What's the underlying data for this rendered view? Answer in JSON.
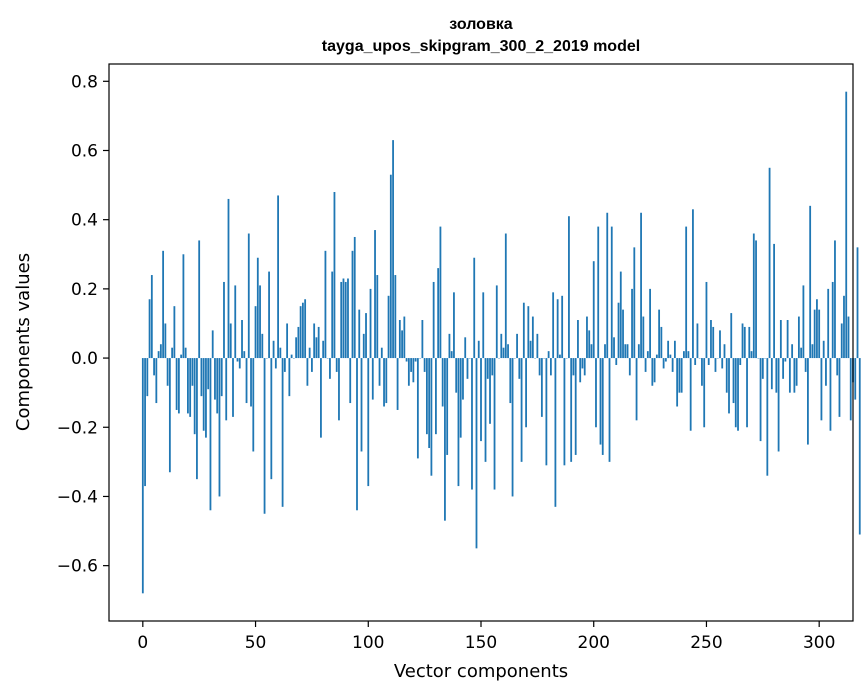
{
  "chart_data": {
    "type": "bar",
    "title": "золовка",
    "subtitle": "tayga_upos_skipgram_300_2_2019 model",
    "xlabel": "Vector components",
    "ylabel": "Components values",
    "xlim": [
      -15,
      315
    ],
    "ylim": [
      -0.76,
      0.85
    ],
    "xticks": [
      0,
      50,
      100,
      150,
      200,
      250,
      300
    ],
    "xtick_labels": [
      "0",
      "50",
      "100",
      "150",
      "200",
      "250",
      "300"
    ],
    "yticks": [
      -0.6,
      -0.4,
      -0.2,
      0.0,
      0.2,
      0.4,
      0.6,
      0.8
    ],
    "ytick_labels": [
      "−0.6",
      "−0.4",
      "−0.2",
      "0.0",
      "0.2",
      "0.4",
      "0.6",
      "0.8"
    ],
    "bar_color": "#1f77b4",
    "values": [
      -0.68,
      -0.37,
      -0.11,
      0.17,
      0.24,
      -0.05,
      -0.13,
      0.02,
      0.04,
      0.31,
      0.1,
      -0.08,
      -0.33,
      0.03,
      0.15,
      -0.15,
      -0.16,
      0.01,
      0.3,
      0.03,
      -0.16,
      -0.17,
      -0.08,
      -0.22,
      -0.35,
      0.34,
      -0.11,
      -0.21,
      -0.23,
      -0.09,
      -0.44,
      0.08,
      -0.12,
      -0.16,
      -0.4,
      -0.11,
      0.22,
      -0.18,
      0.46,
      0.1,
      -0.17,
      0.21,
      -0.01,
      -0.03,
      0.11,
      0.02,
      -0.13,
      0.36,
      -0.14,
      -0.27,
      0.15,
      0.29,
      0.21,
      0.07,
      -0.45,
      0.0,
      0.25,
      -0.35,
      0.05,
      -0.03,
      0.47,
      0.03,
      -0.43,
      -0.04,
      0.1,
      -0.11,
      0.01,
      0.0,
      0.06,
      0.09,
      0.15,
      0.16,
      0.17,
      -0.08,
      0.03,
      -0.04,
      0.1,
      0.06,
      0.09,
      -0.23,
      0.05,
      0.31,
      0.0,
      -0.06,
      0.25,
      0.48,
      -0.04,
      -0.18,
      0.22,
      0.23,
      0.22,
      0.23,
      -0.13,
      0.31,
      0.35,
      -0.44,
      0.14,
      -0.27,
      0.07,
      0.13,
      -0.37,
      0.2,
      -0.12,
      0.37,
      0.24,
      -0.08,
      0.03,
      -0.14,
      -0.13,
      0.18,
      0.53,
      0.63,
      0.24,
      -0.15,
      0.11,
      0.08,
      0.12,
      -0.01,
      -0.08,
      -0.04,
      -0.07,
      -0.01,
      -0.29,
      0.0,
      0.11,
      -0.04,
      -0.22,
      -0.26,
      -0.34,
      0.22,
      -0.22,
      0.26,
      0.38,
      -0.14,
      -0.47,
      -0.28,
      0.07,
      0.02,
      0.19,
      -0.1,
      -0.37,
      -0.23,
      -0.12,
      0.06,
      -0.06,
      0.0,
      -0.38,
      0.29,
      -0.55,
      0.05,
      -0.24,
      0.19,
      -0.3,
      -0.06,
      -0.19,
      -0.05,
      -0.38,
      0.21,
      0.0,
      0.07,
      0.03,
      0.36,
      0.04,
      -0.13,
      -0.4,
      0.0,
      0.07,
      -0.06,
      -0.3,
      0.16,
      -0.2,
      0.15,
      0.05,
      0.12,
      0.0,
      0.07,
      -0.05,
      -0.17,
      0.0,
      -0.31,
      0.02,
      -0.05,
      0.19,
      -0.43,
      0.17,
      0.01,
      0.18,
      -0.31,
      0.0,
      0.41,
      -0.3,
      -0.05,
      -0.28,
      0.11,
      -0.07,
      -0.03,
      -0.05,
      0.12,
      0.08,
      0.04,
      0.28,
      -0.2,
      0.38,
      -0.25,
      -0.28,
      0.04,
      0.42,
      -0.3,
      0.38,
      0.06,
      -0.02,
      0.16,
      0.25,
      0.14,
      0.04,
      0.04,
      -0.05,
      0.2,
      0.32,
      -0.18,
      0.04,
      0.42,
      0.12,
      -0.04,
      0.02,
      0.2,
      -0.08,
      -0.07,
      0.01,
      0.14,
      0.09,
      -0.03,
      -0.01,
      0.05,
      0.01,
      -0.04,
      0.05,
      -0.14,
      -0.1,
      -0.1,
      0.02,
      0.38,
      0.02,
      -0.21,
      0.43,
      -0.02,
      0.1,
      0.0,
      -0.08,
      -0.2,
      0.22,
      -0.02,
      0.11,
      0.09,
      -0.04,
      0.0,
      0.08,
      -0.03,
      0.04,
      -0.1,
      -0.16,
      0.13,
      -0.13,
      -0.2,
      -0.21,
      -0.02,
      0.1,
      0.09,
      -0.2,
      0.09,
      0.02,
      0.36,
      0.34,
      0.0,
      -0.24,
      -0.06,
      0.0,
      -0.34,
      0.55,
      -0.09,
      0.33,
      -0.1,
      -0.27,
      0.11,
      -0.06,
      -0.01,
      0.11,
      -0.1,
      0.04,
      -0.1,
      -0.08,
      0.12,
      0.03,
      0.21,
      -0.04,
      -0.25,
      0.44,
      0.04,
      0.14,
      0.17,
      0.14,
      -0.18,
      0.05,
      -0.08,
      0.2,
      -0.21,
      0.22,
      0.34,
      -0.05,
      -0.17,
      0.1,
      0.18,
      0.77,
      0.12,
      -0.18,
      -0.07,
      -0.12,
      0.32,
      -0.51
    ]
  }
}
